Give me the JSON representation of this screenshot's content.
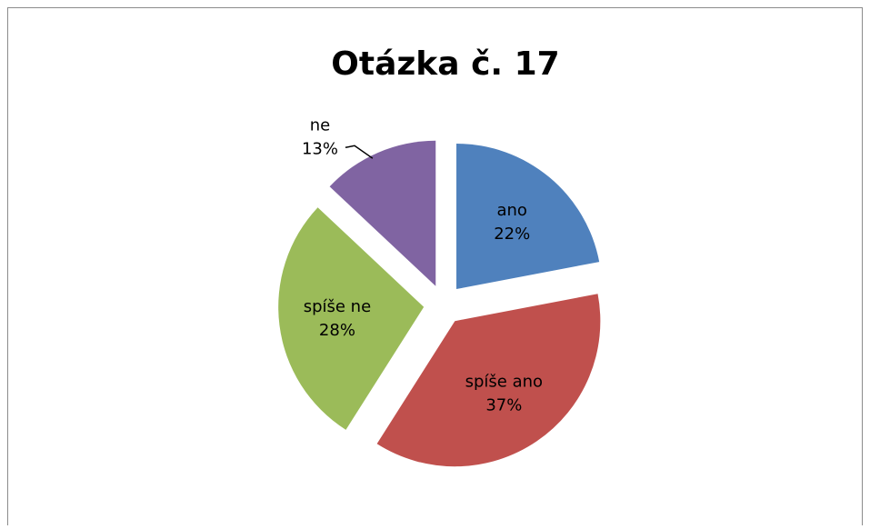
{
  "chart_data": {
    "type": "pie",
    "title": "Otázka č. 17",
    "categories": [
      "ano",
      "spíše ano",
      "spíše ne",
      "ne"
    ],
    "values": [
      22,
      37,
      28,
      13
    ],
    "value_labels": [
      "22%",
      "37%",
      "28%",
      "13%"
    ],
    "colors": [
      "#4f81bd",
      "#c0504d",
      "#9bbb59",
      "#8064a2"
    ]
  }
}
